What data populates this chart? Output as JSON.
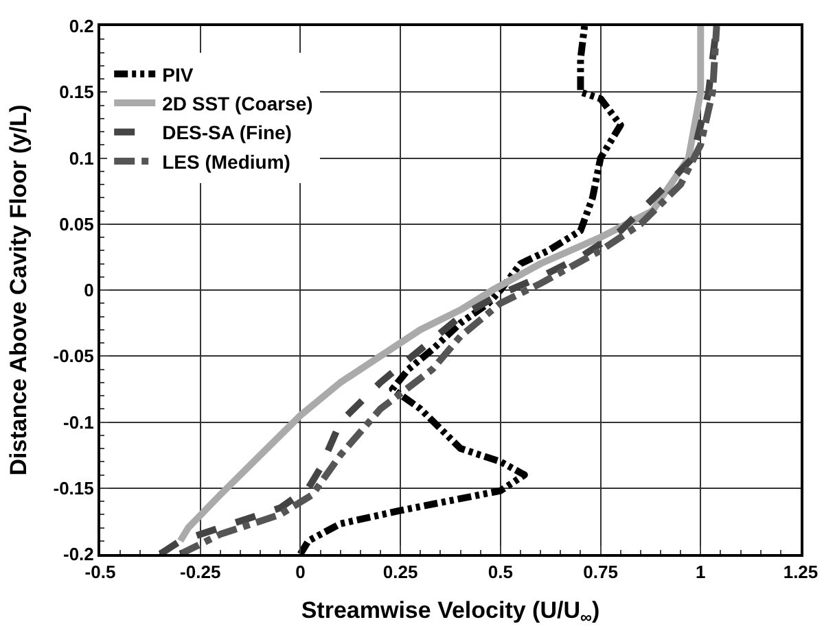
{
  "chart_data": {
    "type": "line",
    "xlabel": "Streamwise Velocity (U/U$_{∞}$)",
    "ylabel": "Distance Above Cavity Floor (y/L)",
    "xlim": [
      -0.5,
      1.25
    ],
    "xticks": [
      -0.5,
      -0.25,
      0,
      0.25,
      0.5,
      0.75,
      1,
      1.25
    ],
    "ylim": [
      -0.2,
      0.2
    ],
    "yticks": [
      -0.2,
      -0.15,
      -0.1,
      -0.05,
      0,
      0.05,
      0.1,
      0.15,
      0.2
    ],
    "grid": true,
    "legend": "top left",
    "marker": "none",
    "series": [
      {
        "name": "PIV",
        "color": "#000000",
        "line_style": "dashdotdot",
        "x": [
          0,
          0.02,
          0.1,
          0.25,
          0.5,
          0.56,
          0.5,
          0.4,
          0.35,
          0.3,
          0.23,
          0.27,
          0.33,
          0.4,
          0.47,
          0.5,
          0.55,
          0.62,
          0.7,
          0.73,
          0.75,
          0.8,
          0.75,
          0.7,
          0.7,
          0.71
        ],
        "values": [
          -0.2,
          -0.19,
          -0.177,
          -0.167,
          -0.152,
          -0.14,
          -0.13,
          -0.12,
          -0.105,
          -0.09,
          -0.075,
          -0.06,
          -0.045,
          -0.025,
          -0.01,
          0,
          0.02,
          0.03,
          0.045,
          0.07,
          0.1,
          0.125,
          0.145,
          0.15,
          0.175,
          0.2
        ]
      },
      {
        "name": "2D SST (Coarse)",
        "color": "#aaaaaa",
        "line_style": "solid",
        "x": [
          -0.3,
          -0.28,
          -0.2,
          -0.1,
          0,
          0.1,
          0.2,
          0.3,
          0.4,
          0.48,
          0.6,
          0.75,
          0.88,
          0.97,
          1,
          1
        ],
        "values": [
          -0.19,
          -0.18,
          -0.155,
          -0.125,
          -0.095,
          -0.07,
          -0.05,
          -0.03,
          -0.015,
          0,
          0.02,
          0.04,
          0.06,
          0.1,
          0.15,
          0.2
        ]
      },
      {
        "name": "DES-SA (Fine)",
        "color": "#444444",
        "line_style": "dashed",
        "x": [
          -0.35,
          -0.3,
          -0.2,
          -0.05,
          0.02,
          0.05,
          0.1,
          0.2,
          0.3,
          0.4,
          0.5,
          0.6,
          0.7,
          0.8,
          0.9,
          0.98,
          1.02,
          1.04
        ],
        "values": [
          -0.2,
          -0.19,
          -0.18,
          -0.165,
          -0.15,
          -0.135,
          -0.1,
          -0.07,
          -0.045,
          -0.02,
          -0.003,
          0.01,
          0.025,
          0.045,
          0.075,
          0.1,
          0.15,
          0.2
        ]
      },
      {
        "name": "LES (Medium)",
        "color": "#555555",
        "line_style": "dashdot",
        "x": [
          -0.3,
          -0.2,
          -0.05,
          0.03,
          0.1,
          0.2,
          0.33,
          0.4,
          0.5,
          0.6,
          0.75,
          0.85,
          0.95,
          1.0,
          1.03,
          1.04
        ],
        "values": [
          -0.2,
          -0.185,
          -0.17,
          -0.155,
          -0.125,
          -0.09,
          -0.06,
          -0.035,
          -0.01,
          0.005,
          0.03,
          0.05,
          0.08,
          0.11,
          0.15,
          0.2
        ]
      }
    ]
  }
}
